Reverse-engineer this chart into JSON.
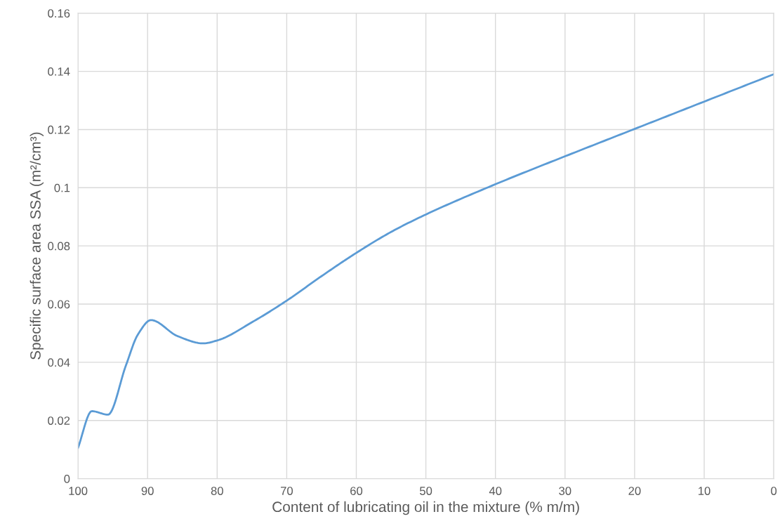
{
  "chart_data": {
    "type": "line",
    "xlabel": "Content of lubricating oil in the mixture (% m/m)",
    "ylabel": "Specific surface area SSA (m²/cm³)",
    "series": [
      {
        "color": "#5b9bd5",
        "x": [
          100,
          98.0,
          95.7,
          93.1,
          91.4,
          89.5,
          85.7,
          82.0,
          80,
          74.9,
          70,
          65,
          60,
          55,
          50,
          40,
          30,
          20,
          10,
          0
        ],
        "values": [
          0.0106,
          0.0232,
          0.022,
          0.039,
          0.0495,
          0.0545,
          0.049,
          0.0465,
          0.0475,
          0.0539,
          0.0612,
          0.0696,
          0.0776,
          0.0848,
          0.0908,
          0.1012,
          0.1108,
          0.1202,
          0.1296,
          0.139
        ]
      }
    ],
    "xlim": [
      100,
      0
    ],
    "xticks": [
      100,
      90,
      80,
      70,
      60,
      50,
      40,
      30,
      20,
      10,
      0
    ],
    "ylim": [
      0,
      0.16
    ],
    "yticks": [
      0,
      0.02,
      0.04,
      0.06,
      0.08,
      0.1,
      0.12,
      0.14,
      0.16
    ],
    "grid": true,
    "marker": "none",
    "line_style": "solid"
  }
}
